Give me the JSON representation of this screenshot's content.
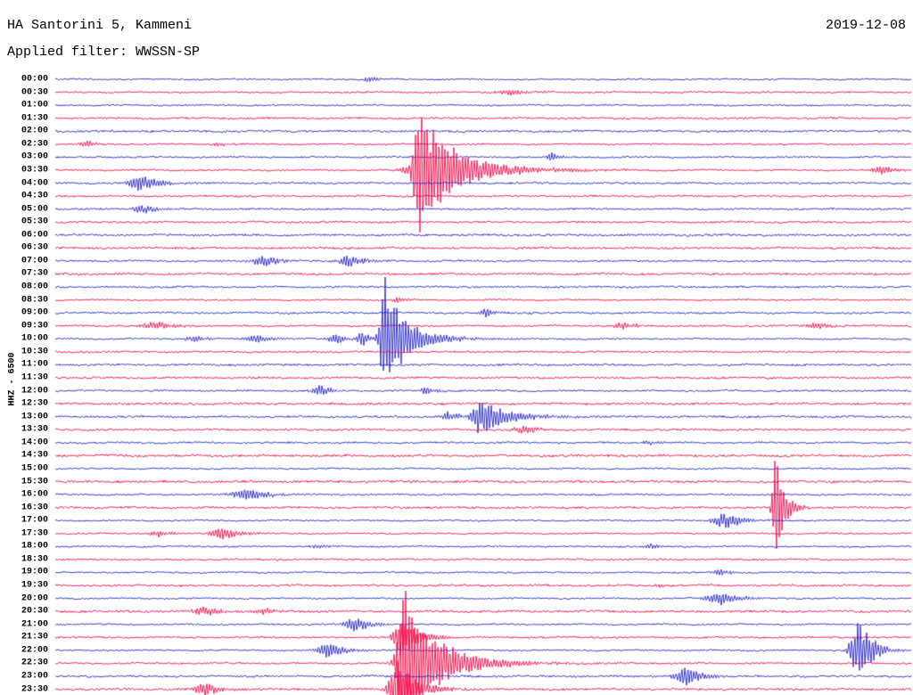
{
  "header": {
    "station_title": "HA Santorini 5, Kammeni",
    "date": "2019-12-08",
    "filter_label": "Applied filter: WWSSN-SP"
  },
  "axis": {
    "channel_label": "HHZ - 6500"
  },
  "chart_data": {
    "type": "line",
    "subtype": "helicorder-seismogram",
    "title": "HA Santorini 5, Kammeni",
    "date": "2019-12-08",
    "filter": "WWSSN-SP",
    "channel": "HHZ",
    "scale": 6500,
    "minutes_per_row": 30,
    "legend": "none",
    "grid": false,
    "trace_colors": [
      "#2424cc",
      "#f40a4a"
    ],
    "color_rule": "even rows blue, odd rows red",
    "noise_amplitude": 1.0,
    "row_times": [
      "00:00",
      "00:30",
      "01:00",
      "01:30",
      "02:00",
      "02:30",
      "03:00",
      "03:30",
      "04:00",
      "04:30",
      "05:00",
      "05:30",
      "06:00",
      "06:30",
      "07:00",
      "07:30",
      "08:00",
      "08:30",
      "09:00",
      "09:30",
      "10:00",
      "10:30",
      "11:00",
      "11:30",
      "12:00",
      "12:30",
      "13:00",
      "13:30",
      "14:00",
      "14:30",
      "15:00",
      "15:30",
      "16:00",
      "16:30",
      "17:00",
      "17:30",
      "18:00",
      "18:30",
      "19:00",
      "19:30",
      "20:00",
      "20:30",
      "21:00",
      "21:30",
      "22:00",
      "22:30",
      "23:00",
      "23:30"
    ],
    "events_note": "x is fraction of the 30-minute row width; amp is peak amplitude in px",
    "events": [
      {
        "time": "00:00",
        "x": 0.368,
        "amp": 3,
        "rise": 6,
        "decay": 10
      },
      {
        "time": "00:30",
        "x": 0.534,
        "amp": 2.5,
        "rise": 15,
        "decay": 25
      },
      {
        "time": "02:30",
        "x": 0.04,
        "amp": 3,
        "rise": 8,
        "decay": 12
      },
      {
        "time": "02:30",
        "x": 0.196,
        "amp": 2,
        "rise": 10,
        "decay": 14
      },
      {
        "time": "03:00",
        "x": 0.581,
        "amp": 5,
        "rise": 4,
        "decay": 8
      },
      {
        "time": "03:30",
        "x": 0.425,
        "amp": 62,
        "rise": 5,
        "decay": 28
      },
      {
        "time": "03:30",
        "x": 0.455,
        "amp": 14,
        "rise": 25,
        "decay": 60
      },
      {
        "time": "03:30",
        "x": 0.967,
        "amp": 4,
        "rise": 10,
        "decay": 14
      },
      {
        "time": "04:00",
        "x": 0.097,
        "amp": 8,
        "rise": 8,
        "decay": 22
      },
      {
        "time": "05:00",
        "x": 0.102,
        "amp": 5,
        "rise": 7,
        "decay": 14
      },
      {
        "time": "07:00",
        "x": 0.245,
        "amp": 5,
        "rise": 10,
        "decay": 16
      },
      {
        "time": "07:00",
        "x": 0.342,
        "amp": 6,
        "rise": 8,
        "decay": 16
      },
      {
        "time": "08:30",
        "x": 0.401,
        "amp": 3,
        "rise": 5,
        "decay": 9
      },
      {
        "time": "09:00",
        "x": 0.503,
        "amp": 4,
        "rise": 7,
        "decay": 12
      },
      {
        "time": "09:30",
        "x": 0.118,
        "amp": 4,
        "rise": 12,
        "decay": 20
      },
      {
        "time": "09:30",
        "x": 0.665,
        "amp": 3,
        "rise": 10,
        "decay": 14
      },
      {
        "time": "09:30",
        "x": 0.894,
        "amp": 3,
        "rise": 12,
        "decay": 16
      },
      {
        "time": "10:00",
        "x": 0.165,
        "amp": 3,
        "rise": 8,
        "decay": 12
      },
      {
        "time": "10:00",
        "x": 0.238,
        "amp": 4,
        "rise": 12,
        "decay": 16
      },
      {
        "time": "10:00",
        "x": 0.329,
        "amp": 5,
        "rise": 7,
        "decay": 10
      },
      {
        "time": "10:00",
        "x": 0.36,
        "amp": 8,
        "rise": 5,
        "decay": 8
      },
      {
        "time": "10:00",
        "x": 0.385,
        "amp": 58,
        "rise": 4,
        "decay": 16
      },
      {
        "time": "10:00",
        "x": 0.405,
        "amp": 12,
        "rise": 15,
        "decay": 40
      },
      {
        "time": "12:00",
        "x": 0.31,
        "amp": 5,
        "rise": 7,
        "decay": 11
      },
      {
        "time": "12:00",
        "x": 0.435,
        "amp": 4,
        "rise": 6,
        "decay": 10
      },
      {
        "time": "13:00",
        "x": 0.461,
        "amp": 5,
        "rise": 6,
        "decay": 10
      },
      {
        "time": "13:00",
        "x": 0.498,
        "amp": 17,
        "rise": 8,
        "decay": 30
      },
      {
        "time": "13:30",
        "x": 0.55,
        "amp": 4,
        "rise": 10,
        "decay": 16
      },
      {
        "time": "14:00",
        "x": 0.696,
        "amp": 2,
        "rise": 8,
        "decay": 12
      },
      {
        "time": "16:00",
        "x": 0.227,
        "amp": 6,
        "rise": 14,
        "decay": 22
      },
      {
        "time": "16:30",
        "x": 0.842,
        "amp": 54,
        "rise": 3,
        "decay": 9
      },
      {
        "time": "17:00",
        "x": 0.784,
        "amp": 8,
        "rise": 10,
        "decay": 18
      },
      {
        "time": "17:30",
        "x": 0.123,
        "amp": 3,
        "rise": 8,
        "decay": 12
      },
      {
        "time": "17:30",
        "x": 0.196,
        "amp": 6,
        "rise": 10,
        "decay": 18
      },
      {
        "time": "18:00",
        "x": 0.31,
        "amp": 2,
        "rise": 8,
        "decay": 12
      },
      {
        "time": "18:00",
        "x": 0.696,
        "amp": 2,
        "rise": 8,
        "decay": 12
      },
      {
        "time": "19:00",
        "x": 0.779,
        "amp": 3,
        "rise": 8,
        "decay": 12
      },
      {
        "time": "19:30",
        "x": 0.711,
        "amp": 2,
        "rise": 8,
        "decay": 12
      },
      {
        "time": "20:00",
        "x": 0.779,
        "amp": 6,
        "rise": 12,
        "decay": 20
      },
      {
        "time": "20:30",
        "x": 0.175,
        "amp": 4,
        "rise": 10,
        "decay": 16
      },
      {
        "time": "20:30",
        "x": 0.243,
        "amp": 3,
        "rise": 8,
        "decay": 12
      },
      {
        "time": "21:00",
        "x": 0.352,
        "amp": 7,
        "rise": 9,
        "decay": 16
      },
      {
        "time": "21:30",
        "x": 0.404,
        "amp": 18,
        "rise": 6,
        "decay": 18
      },
      {
        "time": "22:00",
        "x": 0.321,
        "amp": 8,
        "rise": 9,
        "decay": 16
      },
      {
        "time": "22:00",
        "x": 0.941,
        "amp": 28,
        "rise": 8,
        "decay": 14
      },
      {
        "time": "22:30",
        "x": 0.409,
        "amp": 80,
        "rise": 6,
        "decay": 22
      },
      {
        "time": "22:30",
        "x": 0.445,
        "amp": 16,
        "rise": 20,
        "decay": 50
      },
      {
        "time": "23:00",
        "x": 0.738,
        "amp": 10,
        "rise": 9,
        "decay": 16
      },
      {
        "time": "23:30",
        "x": 0.175,
        "amp": 8,
        "rise": 8,
        "decay": 14
      },
      {
        "time": "23:30",
        "x": 0.401,
        "amp": 28,
        "rise": 7,
        "decay": 20
      }
    ]
  }
}
